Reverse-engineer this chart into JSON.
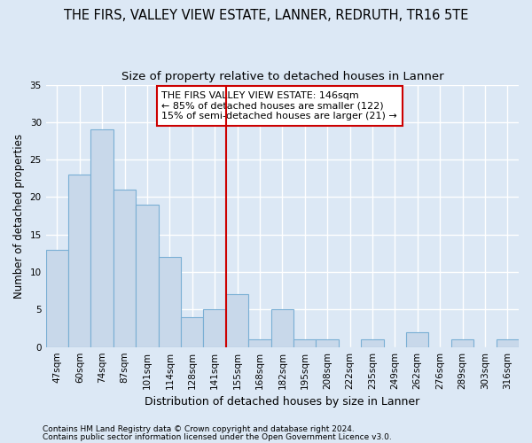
{
  "title": "THE FIRS, VALLEY VIEW ESTATE, LANNER, REDRUTH, TR16 5TE",
  "subtitle": "Size of property relative to detached houses in Lanner",
  "xlabel": "Distribution of detached houses by size in Lanner",
  "ylabel": "Number of detached properties",
  "categories": [
    "47sqm",
    "60sqm",
    "74sqm",
    "87sqm",
    "101sqm",
    "114sqm",
    "128sqm",
    "141sqm",
    "155sqm",
    "168sqm",
    "182sqm",
    "195sqm",
    "208sqm",
    "222sqm",
    "235sqm",
    "249sqm",
    "262sqm",
    "276sqm",
    "289sqm",
    "303sqm",
    "316sqm"
  ],
  "values": [
    13,
    23,
    29,
    21,
    19,
    12,
    4,
    5,
    7,
    1,
    5,
    1,
    1,
    0,
    1,
    0,
    2,
    0,
    1,
    0,
    1
  ],
  "bar_color": "#c8d8ea",
  "bar_edge_color": "#7aafd4",
  "vline_x": 7.5,
  "vline_color": "#cc0000",
  "annotation_text": "THE FIRS VALLEY VIEW ESTATE: 146sqm\n← 85% of detached houses are smaller (122)\n15% of semi-detached houses are larger (21) →",
  "annotation_box_color": "#ffffff",
  "annotation_box_edge": "#cc0000",
  "bg_color": "#dce8f5",
  "grid_color": "#ffffff",
  "ylim": [
    0,
    35
  ],
  "yticks": [
    0,
    5,
    10,
    15,
    20,
    25,
    30,
    35
  ],
  "footer1": "Contains HM Land Registry data © Crown copyright and database right 2024.",
  "footer2": "Contains public sector information licensed under the Open Government Licence v3.0.",
  "title_fontsize": 10.5,
  "subtitle_fontsize": 9.5,
  "xlabel_fontsize": 9,
  "ylabel_fontsize": 8.5,
  "tick_fontsize": 7.5,
  "footer_fontsize": 6.5,
  "annot_fontsize": 8
}
